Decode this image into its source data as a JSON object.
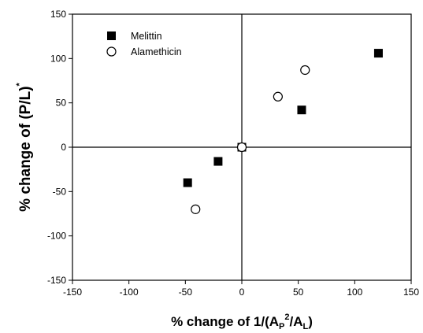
{
  "chart_data": {
    "type": "scatter",
    "title": "",
    "xlabel": {
      "text_main": "% change of 1/(A",
      "sub_p": "P",
      "sup_2": "2",
      "text_slash": "/A",
      "sub_l": "L",
      "text_close": ")"
    },
    "ylabel": {
      "text_main": "% change of (P/L)",
      "sup_star": "*"
    },
    "xlim": [
      -150,
      150
    ],
    "ylim": [
      -150,
      150
    ],
    "xticks": [
      -150,
      -100,
      -50,
      0,
      50,
      100,
      150
    ],
    "yticks": [
      -150,
      -100,
      -50,
      0,
      50,
      100,
      150
    ],
    "grid": false,
    "zero_lines": true,
    "legend_position": "top-left",
    "series": [
      {
        "name": "Melittin",
        "marker": "filled-square",
        "color": "#000000",
        "points": [
          [
            0,
            0
          ],
          [
            -21,
            -16
          ],
          [
            -48,
            -40
          ],
          [
            53,
            42
          ],
          [
            121,
            106
          ]
        ]
      },
      {
        "name": "Alamethicin",
        "marker": "open-circle",
        "color": "#000000",
        "points": [
          [
            0,
            0
          ],
          [
            -41,
            -70
          ],
          [
            32,
            57
          ],
          [
            56,
            87
          ]
        ]
      }
    ]
  }
}
